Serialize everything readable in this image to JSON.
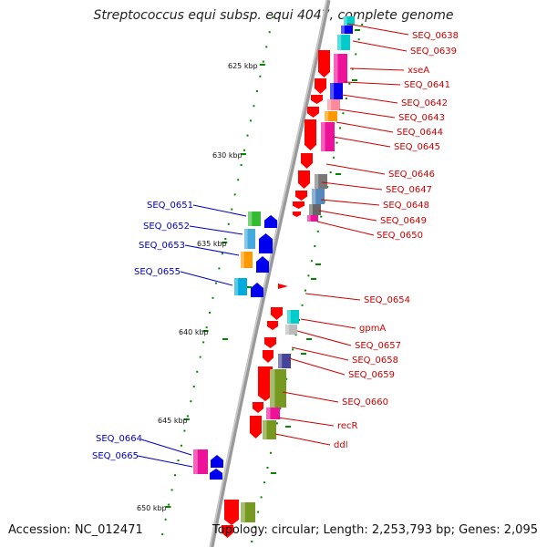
{
  "title": "Streptococcus equi subsp. equi 4047, complete genome",
  "footer": {
    "accession": "Accession: NC_012471",
    "topology": "Topology: circular; Length: 2,253,793 bp; Genes: 2,095"
  },
  "colors": {
    "arrow_red": "#ff0000",
    "label_red": "#cc0000",
    "label_blue": "#0000bb",
    "backbone": "#888888",
    "tick_green": "#008800"
  },
  "kbp_labels": [
    "625 kbp",
    "630 kbp",
    "635 kbp",
    "640 kbp",
    "645 kbp",
    "650 kbp"
  ],
  "genes_right": [
    "SEQ_0638",
    "SEQ_0639",
    "xseA",
    "SEQ_0641",
    "SEQ_0642",
    "SEQ_0643",
    "SEQ_0644",
    "SEQ_0645",
    "SEQ_0646",
    "SEQ_0647",
    "SEQ_0648",
    "SEQ_0649",
    "SEQ_0650",
    "SEQ_0654",
    "gpmA",
    "SEQ_0657",
    "SEQ_0658",
    "SEQ_0659",
    "SEQ_0660",
    "recR",
    "ddl"
  ],
  "genes_left": [
    "SEQ_0651",
    "SEQ_0652",
    "SEQ_0653",
    "SEQ_0655",
    "SEQ_0664",
    "SEQ_0665"
  ]
}
